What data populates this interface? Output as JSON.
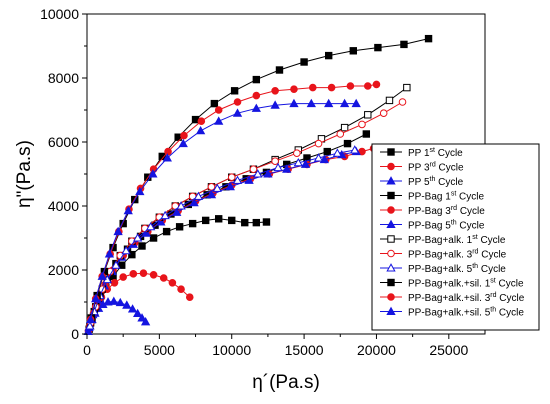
{
  "chart_data": {
    "type": "scatter",
    "xlabel": "η´(Pa.s)",
    "ylabel": "η\"(Pa.s)",
    "xlim": [
      0,
      27500
    ],
    "ylim": [
      0,
      10000
    ],
    "xticks": [
      0,
      5000,
      10000,
      15000,
      20000,
      25000
    ],
    "xtick_labels": [
      "0",
      "5000",
      "10000",
      "15000",
      "20000",
      "25000"
    ],
    "yticks": [
      0,
      2000,
      4000,
      6000,
      8000,
      10000
    ],
    "ytick_labels": [
      "0",
      "2000",
      "4000",
      "6000",
      "8000",
      "10000"
    ],
    "legend_position": "right",
    "series": [
      {
        "name": "PP 1st Cycle",
        "legend": [
          "PP 1",
          "st",
          " Cycle"
        ],
        "color": "#000000",
        "marker": "square",
        "filled": true,
        "x": [
          150,
          350,
          600,
          900,
          1300,
          1800,
          2400,
          3100,
          3800,
          4600,
          5500,
          6400,
          7300,
          8200,
          9100,
          10000,
          10900,
          11700,
          12400
        ],
        "y": [
          150,
          450,
          800,
          1100,
          1450,
          1800,
          2150,
          2480,
          2750,
          3000,
          3200,
          3350,
          3450,
          3550,
          3600,
          3550,
          3480,
          3480,
          3500
        ]
      },
      {
        "name": "PP 3rd Cycle",
        "legend": [
          "PP 3",
          "rd",
          " Cycle"
        ],
        "color": "#e8141b",
        "marker": "circle",
        "filled": true,
        "x": [
          100,
          250,
          450,
          700,
          1000,
          1400,
          1900,
          2500,
          3200,
          3900,
          4600,
          5300,
          5900,
          6500,
          7100
        ],
        "y": [
          100,
          350,
          600,
          900,
          1150,
          1400,
          1600,
          1780,
          1880,
          1900,
          1850,
          1750,
          1600,
          1400,
          1150
        ]
      },
      {
        "name": "PP 5th Cycle",
        "legend": [
          "PP 5",
          "th",
          " Cycle"
        ],
        "color": "#1515e0",
        "marker": "triangle",
        "filled": true,
        "x": [
          80,
          200,
          350,
          550,
          800,
          1100,
          1450,
          1850,
          2300,
          2750,
          3150,
          3500,
          3800,
          4050
        ],
        "y": [
          80,
          250,
          450,
          650,
          800,
          920,
          1000,
          1020,
          980,
          900,
          780,
          640,
          500,
          380
        ]
      },
      {
        "name": "PP-Bag 1st Cycle",
        "legend": [
          "PP-Bag 1",
          "st",
          " Cycle"
        ],
        "color": "#000000",
        "marker": "square",
        "filled": true,
        "x": [
          200,
          500,
          900,
          1400,
          2000,
          2800,
          3700,
          4700,
          5800,
          7000,
          8300,
          9600,
          11000,
          12400,
          13800,
          15200,
          16600,
          18000,
          19300
        ],
        "y": [
          250,
          700,
          1200,
          1700,
          2200,
          2650,
          3050,
          3400,
          3750,
          4050,
          4350,
          4600,
          4850,
          5050,
          5300,
          5500,
          5700,
          5950,
          6250
        ]
      },
      {
        "name": "PP-Bag 3rd Cycle",
        "legend": [
          "PP-Bag 3",
          "rd",
          " Cycle"
        ],
        "color": "#e8141b",
        "marker": "circle",
        "filled": true,
        "x": [
          200,
          450,
          800,
          1250,
          1800,
          2500,
          3300,
          4200,
          5200,
          6300,
          7500,
          8700,
          10000,
          11300,
          12600,
          13900,
          15200,
          16500,
          17800,
          19000,
          19800
        ],
        "y": [
          250,
          650,
          1100,
          1550,
          2000,
          2450,
          2850,
          3200,
          3550,
          3850,
          4150,
          4400,
          4650,
          4850,
          5000,
          5150,
          5300,
          5450,
          5550,
          5700,
          5800
        ]
      },
      {
        "name": "PP-Bag 5th Cycle",
        "legend": [
          "PP-Bag 5",
          "th",
          " Cycle"
        ],
        "color": "#1515e0",
        "marker": "triangle",
        "filled": true,
        "x": [
          150,
          400,
          750,
          1200,
          1750,
          2400,
          3200,
          4100,
          5100,
          6200,
          7400,
          8600,
          9900,
          11200,
          12500,
          13800,
          15100,
          16400,
          17600,
          18600
        ],
        "y": [
          200,
          600,
          1050,
          1500,
          1950,
          2400,
          2800,
          3150,
          3500,
          3800,
          4100,
          4350,
          4600,
          4800,
          5000,
          5150,
          5300,
          5450,
          5600,
          5700
        ]
      },
      {
        "name": "PP-Bag+alk. 1st Cycle",
        "legend": [
          "PP-Bag+alk. 1",
          "st",
          " Cycle"
        ],
        "color": "#000000",
        "marker": "square",
        "filled": false,
        "x": [
          250,
          600,
          1050,
          1600,
          2300,
          3100,
          4000,
          5000,
          6100,
          7300,
          8600,
          10000,
          11500,
          13000,
          14600,
          16200,
          17800,
          19400,
          20900,
          22100
        ],
        "y": [
          350,
          850,
          1400,
          1950,
          2450,
          2900,
          3300,
          3650,
          4000,
          4300,
          4600,
          4900,
          5150,
          5450,
          5750,
          6100,
          6450,
          6850,
          7300,
          7700
        ]
      },
      {
        "name": "PP-Bag+alk. 3rd Cycle",
        "legend": [
          "PP-Bag+alk. 3",
          "rd",
          " Cycle"
        ],
        "color": "#e8141b",
        "marker": "circle",
        "filled": false,
        "x": [
          250,
          600,
          1050,
          1600,
          2300,
          3100,
          4000,
          5000,
          6100,
          7300,
          8600,
          10000,
          11500,
          13000,
          14500,
          16000,
          17500,
          19000,
          20500,
          21800
        ],
        "y": [
          350,
          850,
          1400,
          1950,
          2450,
          2900,
          3300,
          3650,
          4000,
          4300,
          4600,
          4900,
          5150,
          5400,
          5650,
          5950,
          6250,
          6550,
          6900,
          7250
        ]
      },
      {
        "name": "PP-Bag+alk. 5th Cycle",
        "legend": [
          "PP-Bag+alk. 5",
          "th",
          " Cycle"
        ],
        "color": "#1515e0",
        "marker": "triangle",
        "filled": false,
        "x": [
          200,
          500,
          900,
          1400,
          2000,
          2700,
          3500,
          4400,
          5400,
          6500,
          7700,
          9000,
          10400,
          11800,
          13200,
          14600,
          16000,
          17300,
          18500
        ],
        "y": [
          250,
          700,
          1200,
          1700,
          2150,
          2600,
          3000,
          3350,
          3700,
          4000,
          4300,
          4550,
          4800,
          5000,
          5200,
          5350,
          5500,
          5650,
          5750
        ]
      },
      {
        "name": "PP-Bag+alk.+sil. 1st Cycle",
        "legend": [
          "PP-Bag+alk.+sil. 1",
          "st",
          " Cycle"
        ],
        "color": "#000000",
        "marker": "square",
        "filled": true,
        "x": [
          300,
          700,
          1200,
          1800,
          2500,
          3300,
          4200,
          5200,
          6300,
          7500,
          8800,
          10200,
          11700,
          13300,
          15000,
          16700,
          18400,
          20100,
          21900,
          23600
        ],
        "y": [
          500,
          1200,
          1950,
          2700,
          3450,
          4200,
          4900,
          5550,
          6150,
          6700,
          7200,
          7600,
          7950,
          8250,
          8500,
          8700,
          8850,
          8950,
          9050,
          9230
        ]
      },
      {
        "name": "PP-Bag+alk.+sil. 3rd Cycle",
        "legend": [
          "PP-Bag+alk.+sil. 3",
          "rd",
          " Cycle"
        ],
        "color": "#e8141b",
        "marker": "circle",
        "filled": true,
        "x": [
          250,
          600,
          1050,
          1600,
          2200,
          2900,
          3700,
          4600,
          5600,
          6700,
          7900,
          9100,
          10400,
          11700,
          13000,
          14300,
          15600,
          16900,
          18200,
          19400,
          20000
        ],
        "y": [
          450,
          1100,
          1800,
          2500,
          3200,
          3900,
          4550,
          5150,
          5700,
          6200,
          6650,
          7000,
          7250,
          7450,
          7600,
          7650,
          7700,
          7700,
          7750,
          7750,
          7800
        ]
      },
      {
        "name": "PP-Bag+alk.+sil. 5th Cycle",
        "legend": [
          "PP-Bag+alk.+sil. 5",
          "th",
          " Cycle"
        ],
        "color": "#1515e0",
        "marker": "triangle",
        "filled": true,
        "x": [
          250,
          600,
          1050,
          1550,
          2150,
          2850,
          3650,
          4550,
          5550,
          6650,
          7850,
          9100,
          10400,
          11700,
          13000,
          14300,
          15500,
          16700,
          17800,
          18600
        ],
        "y": [
          450,
          1100,
          1800,
          2500,
          3200,
          3850,
          4450,
          5000,
          5500,
          5950,
          6350,
          6650,
          6900,
          7050,
          7150,
          7200,
          7200,
          7200,
          7200,
          7200
        ]
      }
    ]
  }
}
